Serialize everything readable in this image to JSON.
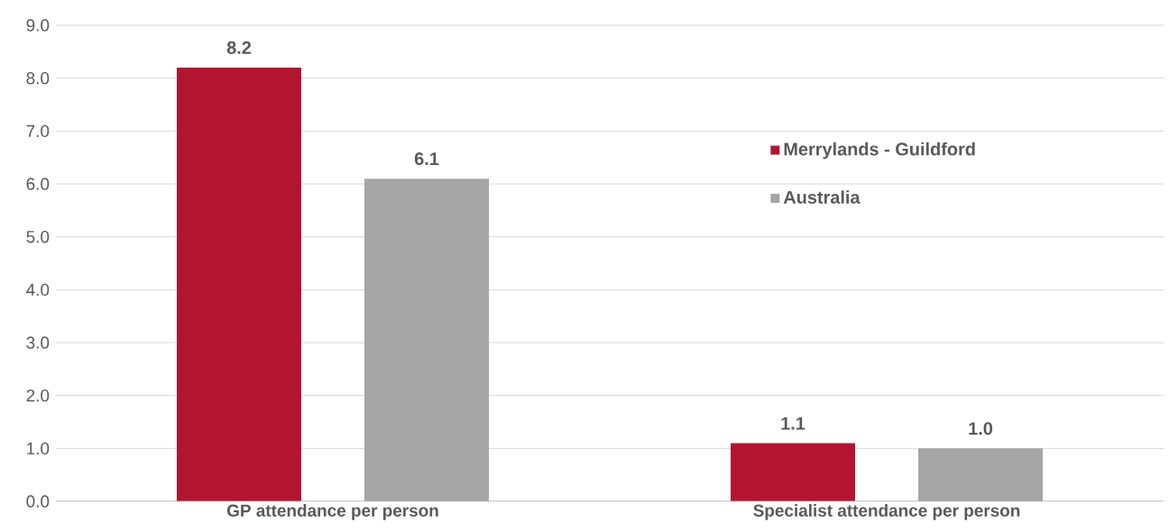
{
  "chart_data": {
    "type": "bar",
    "categories": [
      "GP attendance per person",
      "Specialist attendance per person"
    ],
    "series": [
      {
        "name": "Merrylands - Guildford",
        "color": "#b31531",
        "values": [
          8.2,
          1.1
        ],
        "value_labels": [
          "8.2",
          "1.1"
        ]
      },
      {
        "name": "Australia",
        "color": "#a5a5a5",
        "values": [
          6.1,
          1.0
        ],
        "value_labels": [
          "6.1",
          "1.0"
        ]
      }
    ],
    "ylim": [
      0,
      9
    ],
    "yticks": [
      {
        "value": 0,
        "label": "0.0"
      },
      {
        "value": 1,
        "label": "1.0"
      },
      {
        "value": 2,
        "label": "2.0"
      },
      {
        "value": 3,
        "label": "3.0"
      },
      {
        "value": 4,
        "label": "4.0"
      },
      {
        "value": 5,
        "label": "5.0"
      },
      {
        "value": 6,
        "label": "6.0"
      },
      {
        "value": 7,
        "label": "7.0"
      },
      {
        "value": 8,
        "label": "8.0"
      },
      {
        "value": 9,
        "label": "9.0"
      }
    ],
    "grid": "y",
    "legend": "top right"
  }
}
